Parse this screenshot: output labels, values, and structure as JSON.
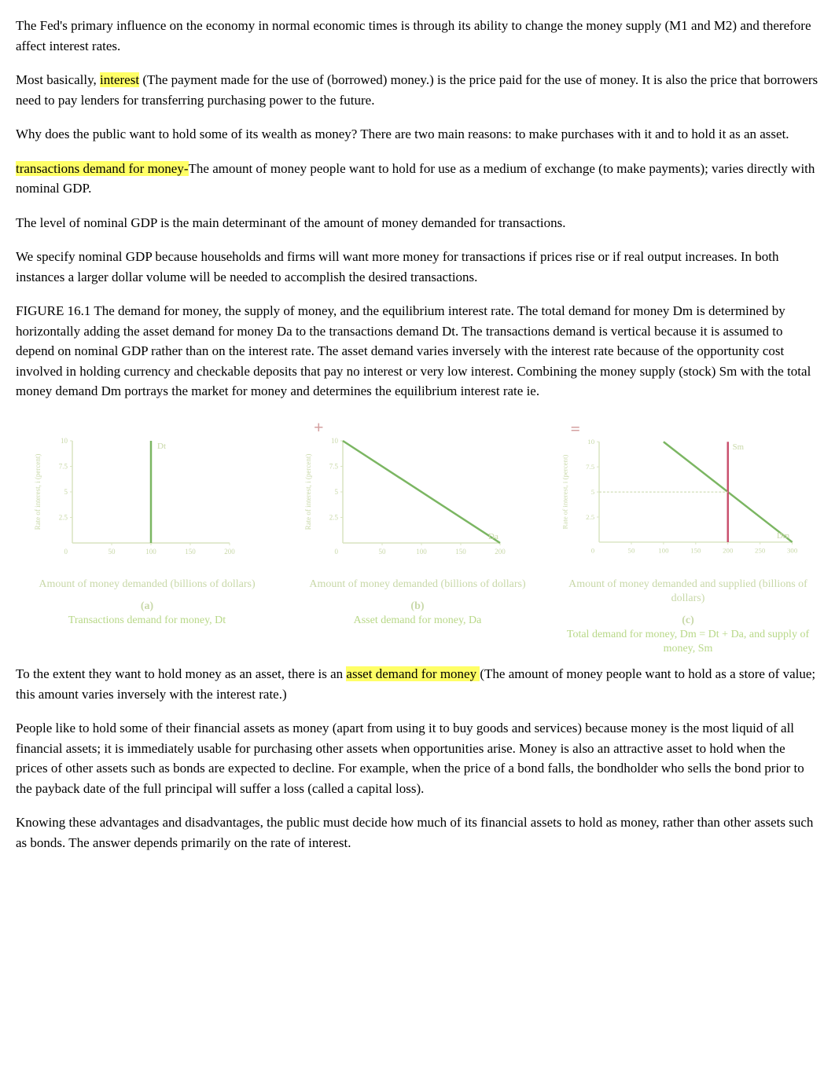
{
  "paragraphs": {
    "p1": "The Fed's primary influence on the economy in normal economic times is through its ability to change the money supply (M1 and M2) and therefore affect interest rates.",
    "p2_pre": "Most basically, ",
    "p2_hl": "interest",
    "p2_post": " (The payment made for the use of (borrowed) money.) is the price paid for the use of money. It is also the price that borrowers need to pay lenders for transferring purchasing power to the future.",
    "p3": "Why does the public want to hold some of its wealth as money? There are two main reasons: to make purchases with it and to hold it as an asset.",
    "p4_hl": "transactions demand for money-",
    "p4_post": "The amount of money people want to hold for use as a medium of exchange (to make payments); varies directly with nominal GDP.",
    "p5": "The level of nominal GDP is the main determinant of the amount of money demanded for transactions.",
    "p6": "We specify nominal GDP because households and firms will want more money for transactions if prices rise or if real output increases. In both instances a larger dollar volume will be needed to accomplish the desired transactions.",
    "p7": "FIGURE 16.1 The demand for money, the supply of money, and the equilibrium interest rate. The total demand for money Dm is determined by horizontally adding the asset demand for money Da to the transactions demand Dt. The transactions demand is vertical because it is assumed to depend on nominal GDP rather than on the interest rate. The asset demand varies inversely with the interest rate because of the opportunity cost involved in holding currency and checkable deposits that pay no interest or very low interest. Combining the money supply (stock) Sm with the total money demand Dm portrays the market for money and determines the equilibrium interest rate ie.",
    "p8_pre": "To the extent they want to hold money as an asset, there is an    ",
    "p8_hl": "asset demand for money ",
    "p8_post": "(The amount of money people want to hold as a store of value; this amount varies inversely with the interest rate.)",
    "p9": "People like to hold some of their financial assets as money (apart from using it to buy goods and services) because money is the most liquid of all financial assets; it is immediately usable for purchasing other assets when opportunities arise. Money is also an attractive asset to hold when the prices of other assets such as bonds are expected to decline. For example, when the price of a bond falls, the bondholder who sells the bond prior to the payback date of the full principal will suffer a loss (called a capital loss).",
    "p10": "Knowing these advantages and disadvantages, the public must decide how much of its financial assets to hold as money, rather than other assets such as bonds. The answer depends primarily on the rate of interest."
  },
  "charts": {
    "chart_a": {
      "type": "line",
      "y_ticks": [
        2.5,
        5,
        7.5,
        10
      ],
      "x_ticks": [
        50,
        100,
        150,
        200
      ],
      "x_label": "Amount of money demanded (billions of dollars)",
      "y_label": "Rate of interest, i (percent)",
      "vertical_line_x": 100,
      "vertical_line_color": "#7bb662",
      "line_label": "Dt",
      "caption_letter": "(a)",
      "caption_title": "Transactions demand for money, Dt",
      "axis_color": "#d8e4c0",
      "grid_color": "#e8f0d8",
      "text_color": "#c8d8a8"
    },
    "chart_b": {
      "type": "line",
      "y_ticks": [
        2.5,
        5,
        7.5,
        10
      ],
      "x_ticks": [
        50,
        100,
        150,
        200
      ],
      "x_label": "Amount of money demanded (billions of dollars)",
      "y_label": "Rate of interest, i (percent)",
      "demand_line": {
        "x1": 0,
        "y1": 10,
        "x2": 200,
        "y2": 0
      },
      "demand_line_color": "#7bb662",
      "line_label": "Da",
      "caption_letter": "(b)",
      "caption_title": "Asset demand for money, Da",
      "plus_symbol": "+",
      "plus_color": "#d4a0a0",
      "axis_color": "#d8e4c0",
      "grid_color": "#e8f0d8",
      "text_color": "#c8d8a8"
    },
    "chart_c": {
      "type": "line",
      "y_ticks": [
        2.5,
        5,
        7.5,
        10
      ],
      "x_ticks": [
        50,
        100,
        150,
        200,
        250,
        300
      ],
      "x_label": "Amount of money demanded and supplied (billions of dollars)",
      "y_label": "Rate of interest, i (percent)",
      "demand_line": {
        "x1": 100,
        "y1": 10,
        "x2": 300,
        "y2": 0
      },
      "demand_line_color": "#7bb662",
      "supply_line_x": 200,
      "supply_line_color": "#c94f6d",
      "line_label_d": "Dm",
      "line_label_s": "Sm",
      "equilibrium_rate": 5,
      "caption_letter": "(c)",
      "caption_title": "Total demand for money, Dm = Dt + Da, and supply of money, Sm",
      "equals_symbol": "=",
      "equals_color": "#d4a0a0",
      "axis_color": "#d8e4c0",
      "grid_color": "#e8f0d8",
      "text_color": "#c8d8a8"
    }
  }
}
